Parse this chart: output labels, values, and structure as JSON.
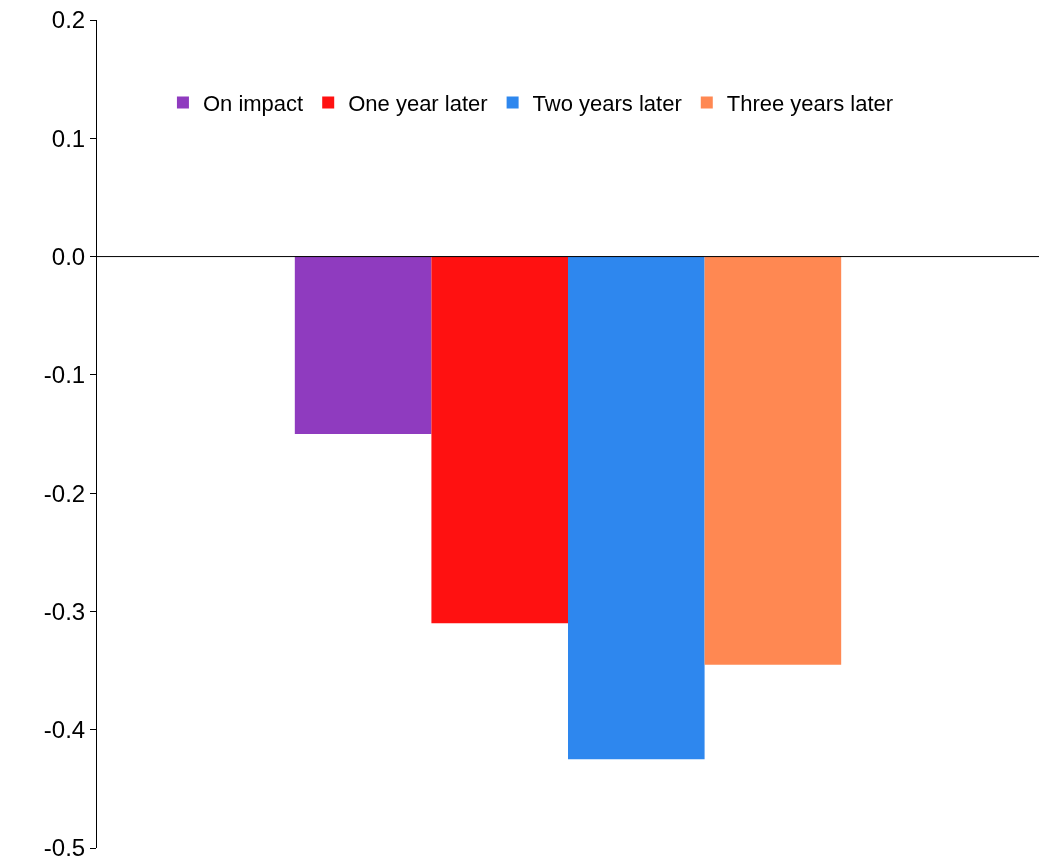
{
  "chart_data": {
    "type": "bar",
    "categories": [
      null
    ],
    "series": [
      {
        "name": "On impact",
        "color": "#8f3bbf",
        "values": [
          -0.15
        ]
      },
      {
        "name": "One year later",
        "color": "#ff1111",
        "values": [
          -0.31
        ]
      },
      {
        "name": "Two years later",
        "color": "#2e87ee",
        "values": [
          -0.425
        ]
      },
      {
        "name": "Three years later",
        "color": "#ff8852",
        "values": [
          -0.345
        ]
      }
    ],
    "ylim": [
      -0.5,
      0.2
    ],
    "yticks": [
      0.2,
      0.1,
      {
        "value": 0,
        "label": "0.0"
      },
      -0.1,
      -0.2,
      -0.3,
      -0.4,
      -0.5
    ],
    "ref_lines": [
      {
        "axis": "y",
        "value": 0,
        "color": "#000000"
      }
    ],
    "legend": "top",
    "tick_labels": "y"
  }
}
